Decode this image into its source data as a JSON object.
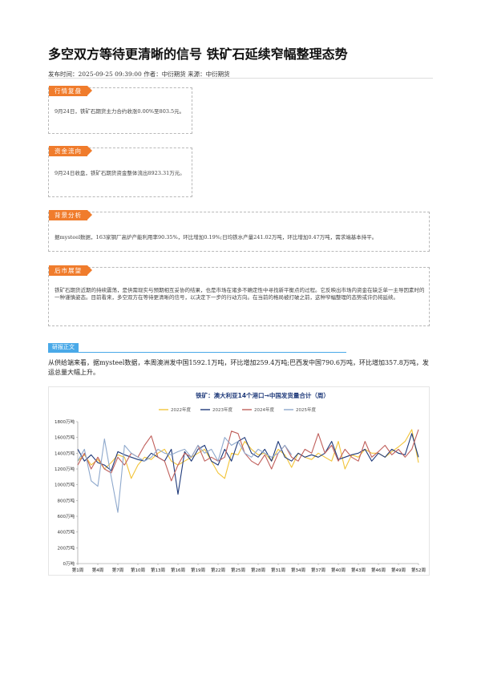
{
  "article": {
    "title": "多空双方等待更清晰的信号 铁矿石延续窄幅整理态势",
    "meta": "发布时间：2025-09-25 09:39:00 作者：中衍期货 来源：中衍期货"
  },
  "sections": [
    {
      "tag": "行情复盘",
      "text": "9月24日，铁矿石期货主力合约收涨0.00%至803.5元。"
    },
    {
      "tag": "资金流向",
      "text": "9月24日收盘，铁矿石期货资金整体流出8923.31万元。"
    },
    {
      "tag": "背景分析",
      "text": "据mysteel数据，163家钢厂高炉产能利用率90.35%，环比增加0.19%;日均铁水产量241.02万吨，环比增加0.47万吨，需求端基本持平。"
    },
    {
      "tag": "后市展望",
      "text": "铁矿石期货近期的持续震荡，是供需现实与预期相互妥协的结果，也是市场在诸多不确定性中寻找新平衡点的过程。它反映出市场内资金在缺乏单一主导因素时的一种谨慎姿态。目前看来，多空双方在等待更清晰的信号，以决定下一步的行动方向。在当前的格局被打破之前，这种窄幅整理的态势或许仍将延续。"
    }
  ],
  "body": {
    "tag": "研报正文",
    "paragraph": "从供给端来看，据mysteel数据，本周澳洲发中国1592.1万吨，环比增加259.4万吨;巴西发中国790.6万吨，环比增加357.8万吨，发运总量大幅上升。"
  },
  "colors": {
    "accent_orange": "#f07c2c",
    "accent_blue": "#49a9e8",
    "s2022": "#f2c43a",
    "s2023": "#1f3a7a",
    "s2024": "#c0605c",
    "s2025": "#8ea8cc"
  },
  "chart_data": {
    "type": "line",
    "title": "铁矿：澳大利亚14个港口→中国发货量合计（周）",
    "xlabel": "",
    "ylabel": "",
    "ylim": [
      0,
      1800
    ],
    "yticks": [
      "0万吨",
      "200万吨",
      "400万吨",
      "600万吨",
      "800万吨",
      "1000万吨",
      "1200万吨",
      "1400万吨",
      "1600万吨",
      "1800万吨"
    ],
    "xticks": [
      "第1周",
      "第4周",
      "第7周",
      "第10周",
      "第13周",
      "第16周",
      "第19周",
      "第22周",
      "第25周",
      "第28周",
      "第31周",
      "第34周",
      "第37周",
      "第40周",
      "第43周",
      "第46周",
      "第49周",
      "第52周"
    ],
    "legend": "top",
    "grid": false,
    "series": [
      {
        "name": "2022年度",
        "color": "#f2c43a",
        "values": [
          1300,
          1380,
          1250,
          1320,
          1200,
          1280,
          1380,
          1350,
          1080,
          1250,
          1350,
          1320,
          1400,
          1450,
          1300,
          1250,
          1300,
          1350,
          1400,
          1450,
          1300,
          1150,
          1080,
          1400,
          1380,
          1550,
          1450,
          1380,
          1400,
          1300,
          1450,
          1380,
          1220,
          1400,
          1350,
          1320,
          1400,
          1350,
          1300,
          1550,
          1200,
          1380,
          1350,
          1450,
          1400,
          1400,
          1350,
          1420,
          1480,
          1550,
          1700,
          1280
        ]
      },
      {
        "name": "2023年度",
        "color": "#1f3a7a",
        "values": [
          1450,
          1300,
          1380,
          1280,
          1250,
          1180,
          1420,
          1380,
          1350,
          1320,
          1300,
          1400,
          1350,
          1300,
          1450,
          880,
          1420,
          1300,
          1450,
          1500,
          1300,
          1250,
          1450,
          1300,
          1550,
          1600,
          1400,
          1350,
          1450,
          1300,
          1550,
          1350,
          1300,
          1400,
          1350,
          1380,
          1350,
          1400,
          1550,
          1320,
          1350,
          1380,
          1400,
          1450,
          1300,
          1400,
          1350,
          1450,
          1400,
          1380,
          1650,
          1350
        ]
      },
      {
        "name": "2024年度",
        "color": "#c0605c",
        "values": [
          1250,
          1400,
          1200,
          1350,
          1200,
          1150,
          1350,
          1250,
          1400,
          1350,
          1500,
          1620,
          1350,
          1300,
          1050,
          1250,
          1400,
          1350,
          1500,
          1300,
          1350,
          1300,
          1350,
          1680,
          1650,
          1400,
          1300,
          1250,
          1380,
          1200,
          1400,
          1500,
          1350,
          1300,
          1450,
          1400,
          1650,
          1400,
          1500,
          1300,
          1450,
          1350,
          1300,
          1550,
          1350,
          1420,
          1500,
          1380,
          1450,
          1350,
          1450,
          1700
        ]
      },
      {
        "name": "2025年度",
        "color": "#8ea8cc",
        "values": [
          1300,
          1450,
          1050,
          980,
          1580,
          1100,
          650,
          1500,
          1400,
          1350,
          1300,
          1350,
          1450,
          1400,
          1380,
          1420,
          1450,
          1350,
          1500,
          1400,
          1450,
          1300,
          1600,
          1500,
          1550,
          1400,
          1350,
          1450,
          1400,
          1350,
          1400,
          1500,
          1380
        ]
      }
    ]
  }
}
